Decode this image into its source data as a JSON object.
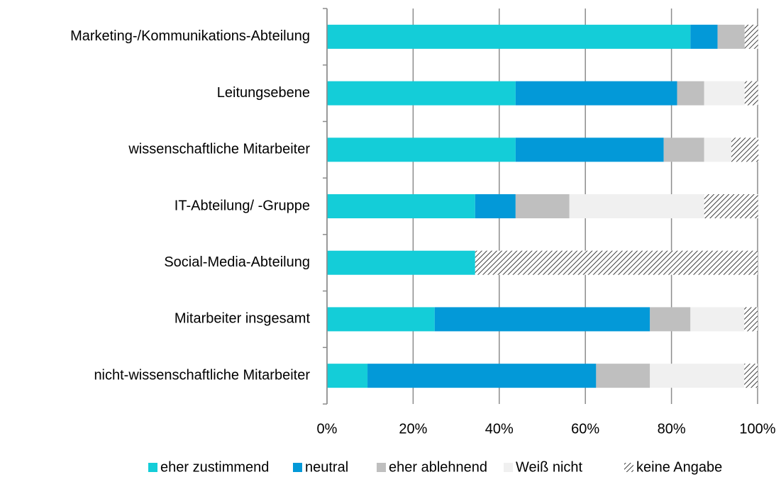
{
  "chart_data": {
    "type": "stacked-bar-horizontal",
    "categories": [
      "Marketing-/Kommunikations-Abteilung",
      "Leitungsebene",
      "wissenschaftliche Mitarbeiter",
      "IT-Abteilung/ -Gruppe",
      "Social-Media-Abteilung",
      "Mitarbeiter insgesamt",
      "nicht-wissenschaftliche Mitarbeiter"
    ],
    "series": [
      {
        "name": "eher zustimmend",
        "color": "#14cdd8",
        "values": [
          84.4,
          43.8,
          43.8,
          34.4,
          34.4,
          25,
          9.4
        ]
      },
      {
        "name": "neutral",
        "color": "#0399d8",
        "values": [
          6.3,
          37.5,
          34.4,
          9.4,
          0,
          50,
          53.1
        ]
      },
      {
        "name": "eher ablehnend",
        "color": "#bfbfbf",
        "values": [
          6.3,
          6.3,
          9.4,
          12.5,
          0,
          9.4,
          12.5
        ]
      },
      {
        "name": "Weiß nicht",
        "color": "#f0f0f0",
        "values": [
          0,
          9.4,
          6.3,
          31.3,
          0,
          12.5,
          21.9
        ]
      },
      {
        "name": "keine Angabe",
        "color": "#404040",
        "pattern": "hatch",
        "values": [
          3.1,
          3.1,
          6.3,
          12.5,
          65.6,
          3.1,
          3.1
        ]
      }
    ],
    "xlim": [
      0,
      100
    ],
    "xticks": [
      {
        "value": 0,
        "label": "0%"
      },
      {
        "value": 20,
        "label": "20%"
      },
      {
        "value": 40,
        "label": "40%"
      },
      {
        "value": 60,
        "label": "60%"
      },
      {
        "value": 80,
        "label": "80%"
      },
      {
        "value": 100,
        "label": "100%"
      }
    ],
    "grid": true,
    "legend": "bottom"
  }
}
